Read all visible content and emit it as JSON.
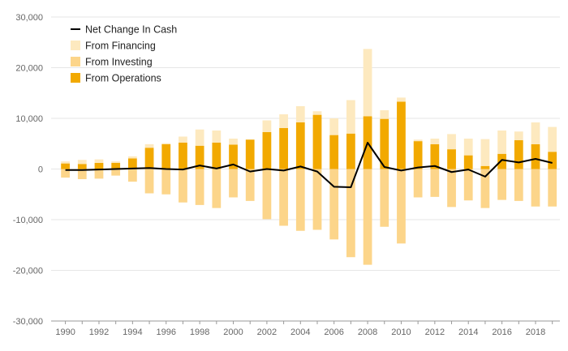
{
  "chart_data": {
    "type": "bar",
    "stacked": true,
    "x": [
      1990,
      1991,
      1992,
      1993,
      1994,
      1995,
      1996,
      1997,
      1998,
      1999,
      2000,
      2001,
      2002,
      2003,
      2004,
      2005,
      2006,
      2007,
      2008,
      2009,
      2010,
      2011,
      2012,
      2013,
      2014,
      2015,
      2016,
      2017,
      2018,
      2019
    ],
    "x_tick_labels": [
      "1990",
      "1992",
      "1994",
      "1996",
      "1998",
      "2000",
      "2002",
      "2004",
      "2006",
      "2008",
      "2010",
      "2012",
      "2014",
      "2016",
      "2018"
    ],
    "y_tick_labels": [
      "30,000",
      "20,000",
      "10,000",
      "0",
      "-10,000",
      "-20,000",
      "-30,000"
    ],
    "ylim": [
      -30000,
      30000
    ],
    "grid": true,
    "legend_position": "top-left",
    "series": [
      {
        "name": "From Operations",
        "kind": "bar",
        "color": "#f2a900",
        "values": [
          1100,
          1000,
          1200,
          1200,
          2100,
          4200,
          4900,
          5200,
          4600,
          5200,
          4800,
          5800,
          7300,
          8100,
          9200,
          10700,
          6700,
          7000,
          10400,
          9900,
          13300,
          5500,
          4900,
          3900,
          2700,
          600,
          3000,
          5700,
          4900,
          3400
        ]
      },
      {
        "name": "From Financing",
        "kind": "bar",
        "color": "#fde9bf",
        "values": [
          400,
          800,
          700,
          300,
          400,
          700,
          200,
          1200,
          3200,
          2400,
          1200,
          0,
          2300,
          2700,
          3200,
          700,
          3300,
          6600,
          13300,
          1700,
          800,
          300,
          1100,
          3000,
          3300,
          5300,
          4600,
          1700,
          4300,
          4900
        ]
      },
      {
        "name": "From Investing",
        "kind": "bar",
        "color": "#fcd58a",
        "values": [
          -1700,
          -2000,
          -1900,
          -1300,
          -2500,
          -4800,
          -5000,
          -6600,
          -7100,
          -7700,
          -5600,
          -6300,
          -9900,
          -11200,
          -12200,
          -12000,
          -13900,
          -17400,
          -18900,
          -11400,
          -14700,
          -5600,
          -5500,
          -7500,
          -6200,
          -7700,
          -6100,
          -6300,
          -7400,
          -7400
        ]
      },
      {
        "name": "Net Change In Cash",
        "kind": "line",
        "color": "#000000",
        "values": [
          -200,
          -200,
          -100,
          0,
          100,
          200,
          0,
          -100,
          700,
          100,
          900,
          -500,
          0,
          -300,
          500,
          -500,
          -3500,
          -3600,
          5200,
          400,
          -300,
          300,
          600,
          -600,
          -100,
          -1500,
          1800,
          1300,
          2000,
          1200
        ]
      }
    ],
    "legend_order": [
      "Net Change In Cash",
      "From Financing",
      "From Investing",
      "From Operations"
    ]
  }
}
